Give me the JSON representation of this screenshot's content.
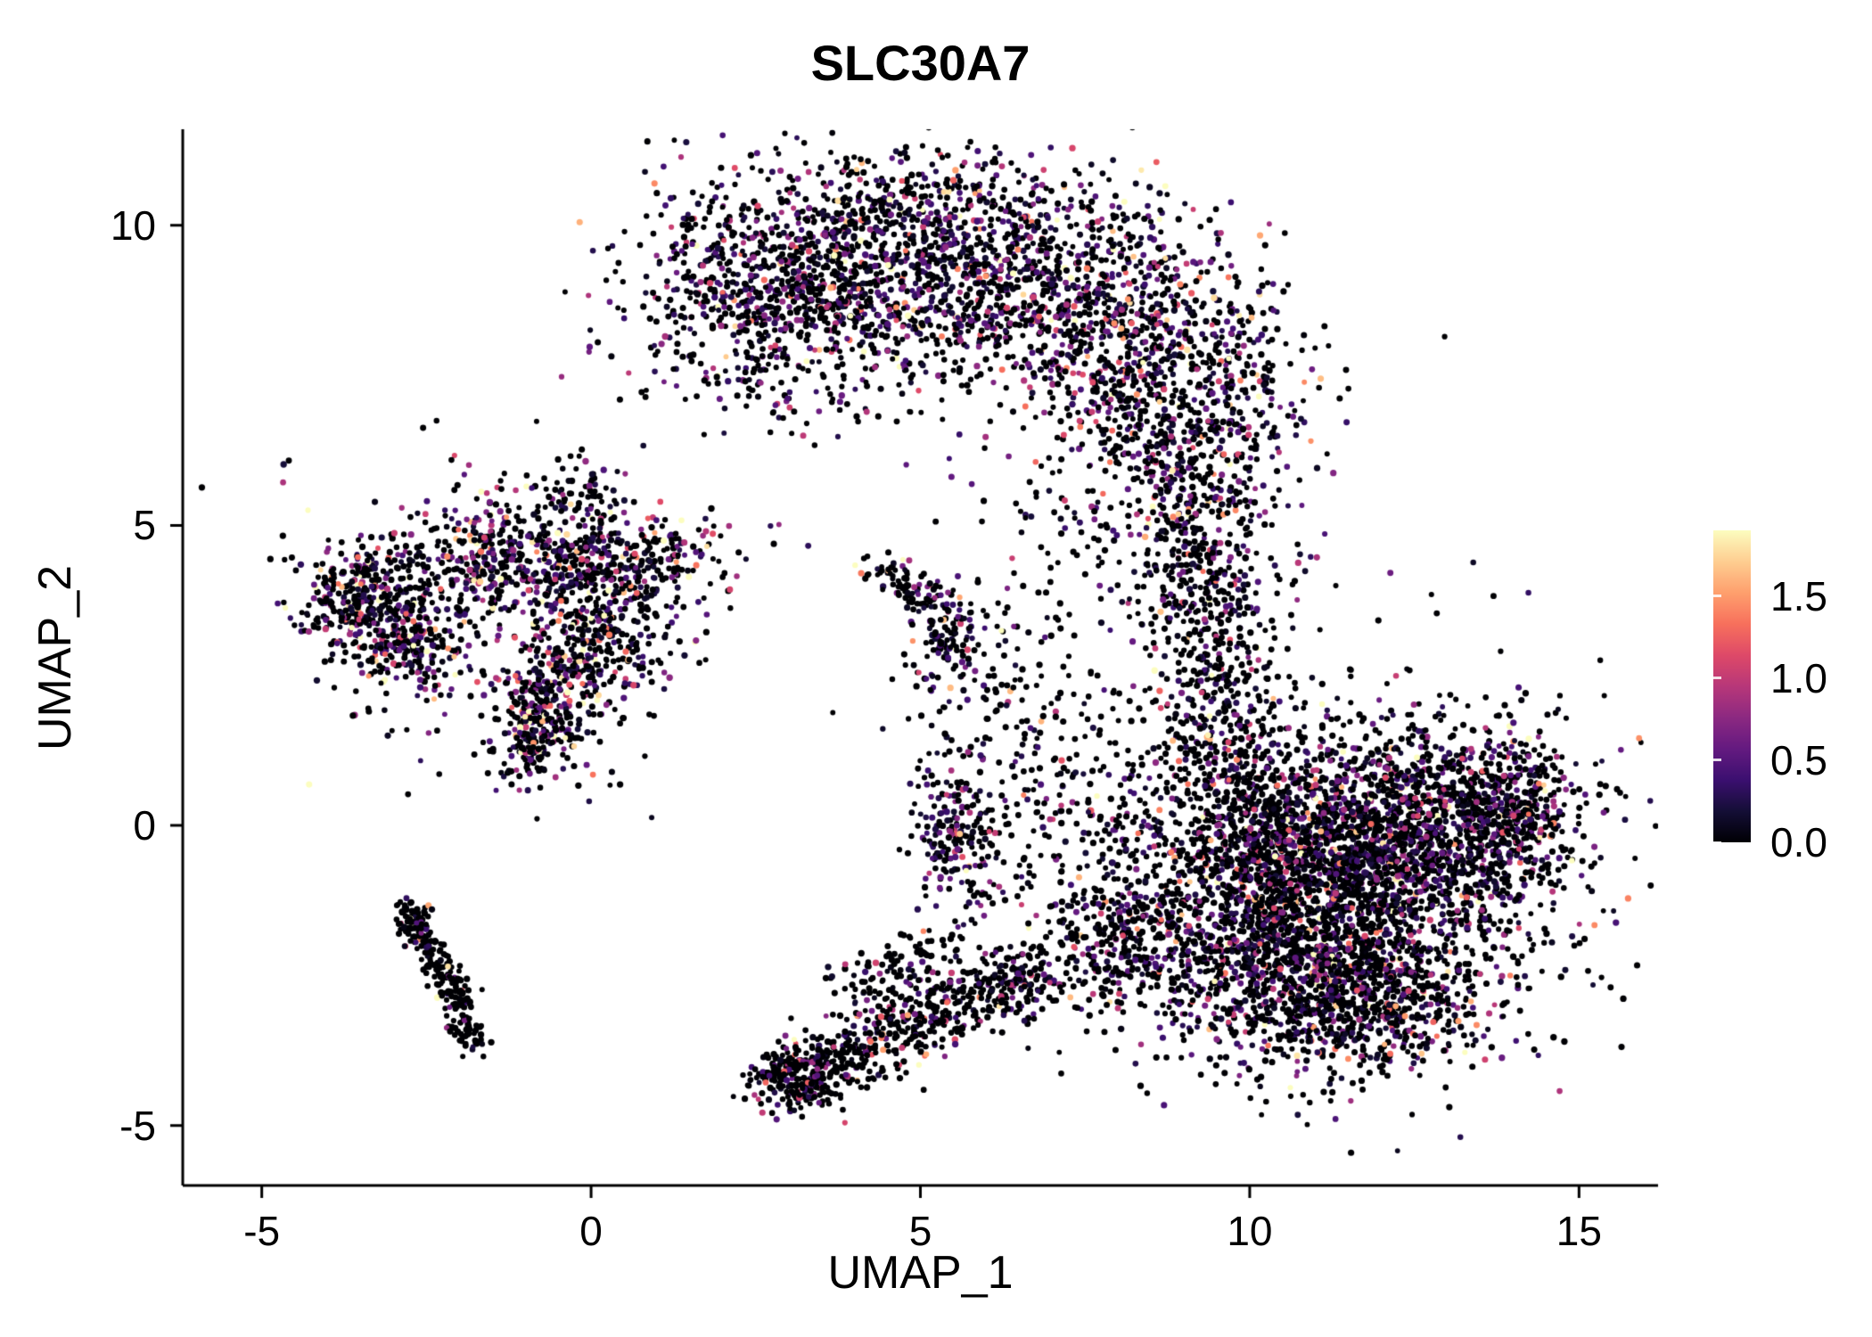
{
  "chart_data": {
    "type": "scatter",
    "title": "SLC30A7",
    "xlabel": "UMAP_1",
    "ylabel": "UMAP_2",
    "xlim": [
      -6.2,
      16.2
    ],
    "ylim": [
      -6.0,
      11.6
    ],
    "grid": false,
    "x_ticks": {
      "values": [
        -5,
        0,
        5,
        10,
        15
      ],
      "labels": [
        "-5",
        "0",
        "5",
        "10",
        "15"
      ]
    },
    "y_ticks": {
      "values": [
        -5,
        0,
        5,
        10
      ],
      "labels": [
        "-5",
        "0",
        "5",
        "10"
      ]
    },
    "colormap": {
      "name": "magma",
      "stops": [
        [
          0.0,
          "#000004"
        ],
        [
          0.1,
          "#140e36"
        ],
        [
          0.2,
          "#3b0f70"
        ],
        [
          0.3,
          "#641a80"
        ],
        [
          0.4,
          "#8c2981"
        ],
        [
          0.5,
          "#b73779"
        ],
        [
          0.6,
          "#de4968"
        ],
        [
          0.7,
          "#f7705c"
        ],
        [
          0.8,
          "#fe9f6d"
        ],
        [
          0.9,
          "#fece91"
        ],
        [
          1.0,
          "#fcfdbf"
        ]
      ]
    },
    "legend": {
      "position": "right",
      "range": [
        0,
        1.9
      ],
      "tick_values": [
        0.0,
        0.5,
        1.0,
        1.5
      ],
      "tick_labels": [
        "0.0",
        "0.5",
        "1.0",
        "1.5"
      ]
    },
    "point_radius_px": [
      2.9,
      3.7
    ],
    "clusters": [
      {
        "name": "top-crescent-core",
        "kind": "path",
        "points": [
          [
            1.4,
            8.8
          ],
          [
            2.6,
            9.3
          ],
          [
            3.6,
            9.7
          ],
          [
            4.8,
            9.9
          ],
          [
            6.1,
            9.7
          ],
          [
            7.3,
            9.2
          ],
          [
            8.4,
            8.6
          ],
          [
            9.2,
            7.8
          ],
          [
            9.5,
            6.9
          ],
          [
            9.2,
            6.1
          ]
        ],
        "jitter": 0.85,
        "n": 2400,
        "frac_expr": 0.5,
        "mean_expr": 0.5
      },
      {
        "name": "top-crescent-inner-fringe",
        "kind": "path",
        "points": [
          [
            2.8,
            8.6
          ],
          [
            4.0,
            8.9
          ],
          [
            5.2,
            8.9
          ],
          [
            6.4,
            8.5
          ],
          [
            7.3,
            7.9
          ],
          [
            8.0,
            7.2
          ],
          [
            8.4,
            6.4
          ]
        ],
        "jitter": 0.5,
        "n": 500,
        "frac_expr": 0.45,
        "mean_expr": 0.5
      },
      {
        "name": "top-sparse-below",
        "kind": "gauss",
        "center": [
          4.6,
          7.7
        ],
        "sx": 1.3,
        "sy": 0.85,
        "n": 150,
        "frac_expr": 0.4,
        "mean_expr": 0.5
      },
      {
        "name": "left-of-crescent",
        "kind": "gauss",
        "center": [
          3.0,
          8.3
        ],
        "sx": 0.8,
        "sy": 0.7,
        "n": 150,
        "frac_expr": 0.45,
        "mean_expr": 0.5
      },
      {
        "name": "connector-vertical",
        "kind": "path",
        "points": [
          [
            9.0,
            5.8
          ],
          [
            9.1,
            4.9
          ],
          [
            9.3,
            4.0
          ],
          [
            9.4,
            3.1
          ],
          [
            9.6,
            2.3
          ]
        ],
        "jitter": 0.45,
        "n": 380,
        "frac_expr": 0.4,
        "mean_expr": 0.5
      },
      {
        "name": "connector-sparse",
        "kind": "gauss",
        "center": [
          9.0,
          4.2
        ],
        "sx": 0.9,
        "sy": 1.2,
        "n": 160,
        "frac_expr": 0.35,
        "mean_expr": 0.5
      },
      {
        "name": "right-blob-core",
        "kind": "gauss",
        "center": [
          11.2,
          -0.9
        ],
        "sx": 1.5,
        "sy": 1.1,
        "n": 2300,
        "frac_expr": 0.42,
        "mean_expr": 0.5
      },
      {
        "name": "right-blob-upper",
        "kind": "gauss",
        "center": [
          12.6,
          0.2
        ],
        "sx": 1.1,
        "sy": 0.75,
        "n": 750,
        "frac_expr": 0.42,
        "mean_expr": 0.5
      },
      {
        "name": "right-blob-tip",
        "kind": "gauss",
        "center": [
          14.0,
          0.3
        ],
        "sx": 0.5,
        "sy": 0.6,
        "n": 280,
        "frac_expr": 0.42,
        "mean_expr": 0.5
      },
      {
        "name": "right-blob-lower",
        "kind": "gauss",
        "center": [
          10.6,
          -2.6
        ],
        "sx": 1.1,
        "sy": 0.75,
        "n": 700,
        "frac_expr": 0.4,
        "mean_expr": 0.5
      },
      {
        "name": "right-blob-bottom",
        "kind": "gauss",
        "center": [
          11.9,
          -2.9
        ],
        "sx": 0.9,
        "sy": 0.6,
        "n": 420,
        "frac_expr": 0.38,
        "mean_expr": 0.5
      },
      {
        "name": "right-blob-left-edge",
        "kind": "path",
        "points": [
          [
            9.2,
            2.0
          ],
          [
            9.7,
            1.2
          ],
          [
            10.1,
            0.3
          ],
          [
            10.2,
            -0.6
          ]
        ],
        "jitter": 0.5,
        "n": 350,
        "frac_expr": 0.4,
        "mean_expr": 0.5
      },
      {
        "name": "right-blob-halo",
        "kind": "gauss",
        "center": [
          11.5,
          -0.8
        ],
        "sx": 2.2,
        "sy": 1.8,
        "n": 500,
        "frac_expr": 0.35,
        "mean_expr": 0.5
      },
      {
        "name": "left-cluster-a",
        "kind": "gauss",
        "center": [
          -3.55,
          3.9
        ],
        "sx": 0.45,
        "sy": 0.45,
        "n": 240,
        "frac_expr": 0.5,
        "mean_expr": 0.6
      },
      {
        "name": "left-cluster-b",
        "kind": "gauss",
        "center": [
          -2.95,
          3.05
        ],
        "sx": 0.5,
        "sy": 0.45,
        "n": 260,
        "frac_expr": 0.5,
        "mean_expr": 0.6
      },
      {
        "name": "left-cluster-top",
        "kind": "gauss",
        "center": [
          -1.3,
          4.45
        ],
        "sx": 0.85,
        "sy": 0.5,
        "n": 380,
        "frac_expr": 0.5,
        "mean_expr": 0.6
      },
      {
        "name": "left-cluster-topright",
        "kind": "gauss",
        "center": [
          0.4,
          4.4
        ],
        "sx": 0.8,
        "sy": 0.45,
        "n": 300,
        "frac_expr": 0.5,
        "mean_expr": 0.6
      },
      {
        "name": "left-cluster-mid",
        "kind": "gauss",
        "center": [
          0.1,
          3.0
        ],
        "sx": 0.6,
        "sy": 0.5,
        "n": 240,
        "frac_expr": 0.5,
        "mean_expr": 0.6
      },
      {
        "name": "left-cluster-low",
        "kind": "gauss",
        "center": [
          -0.55,
          2.1
        ],
        "sx": 0.5,
        "sy": 0.55,
        "n": 220,
        "frac_expr": 0.5,
        "mean_expr": 0.6
      },
      {
        "name": "left-cluster-tail",
        "kind": "path",
        "points": [
          [
            -0.7,
            1.9
          ],
          [
            -0.85,
            1.3
          ],
          [
            -0.95,
            0.85
          ]
        ],
        "jitter": 0.25,
        "n": 130,
        "frac_expr": 0.5,
        "mean_expr": 0.6
      },
      {
        "name": "left-cluster-sparse",
        "kind": "gauss",
        "center": [
          -1.2,
          3.6
        ],
        "sx": 1.6,
        "sy": 1.3,
        "n": 280,
        "frac_expr": 0.45,
        "mean_expr": 0.6
      },
      {
        "name": "left-cluster-spur-top",
        "kind": "gauss",
        "center": [
          -0.15,
          5.6
        ],
        "sx": 0.3,
        "sy": 0.3,
        "n": 50,
        "frac_expr": 0.45,
        "mean_expr": 0.6
      },
      {
        "name": "thin-diagonal",
        "kind": "path",
        "points": [
          [
            -2.75,
            -1.45
          ],
          [
            -2.55,
            -1.9
          ],
          [
            -2.3,
            -2.35
          ],
          [
            -2.1,
            -2.8
          ],
          [
            -1.95,
            -3.25
          ],
          [
            -1.8,
            -3.7
          ]
        ],
        "jitter": 0.13,
        "n": 230,
        "frac_expr": 0.18,
        "mean_expr": 0.5
      },
      {
        "name": "thin-diagonal-hook",
        "kind": "path",
        "points": [
          [
            -2.85,
            -1.35
          ],
          [
            -2.6,
            -1.6
          ]
        ],
        "jitter": 0.1,
        "n": 40,
        "frac_expr": 0.18,
        "mean_expr": 0.5
      },
      {
        "name": "small-mid-cluster",
        "kind": "gauss",
        "center": [
          5.35,
          3.15
        ],
        "sx": 0.3,
        "sy": 0.5,
        "n": 140,
        "frac_expr": 0.45,
        "mean_expr": 0.55
      },
      {
        "name": "small-mid-arm",
        "kind": "path",
        "points": [
          [
            4.25,
            4.3
          ],
          [
            4.7,
            4.1
          ],
          [
            5.15,
            3.8
          ]
        ],
        "jitter": 0.15,
        "n": 70,
        "frac_expr": 0.4,
        "mean_expr": 0.5
      },
      {
        "name": "small-blob-mid-left",
        "kind": "gauss",
        "center": [
          5.55,
          -0.1
        ],
        "sx": 0.35,
        "sy": 0.6,
        "n": 200,
        "frac_expr": 0.45,
        "mean_expr": 0.55
      },
      {
        "name": "bottom-tail",
        "kind": "path",
        "points": [
          [
            2.8,
            -4.3
          ],
          [
            3.3,
            -4.15
          ],
          [
            3.9,
            -3.85
          ],
          [
            4.6,
            -3.5
          ],
          [
            5.3,
            -3.1
          ],
          [
            6.0,
            -2.8
          ],
          [
            6.7,
            -2.5
          ]
        ],
        "jitter": 0.3,
        "n": 600,
        "frac_expr": 0.3,
        "mean_expr": 0.5
      },
      {
        "name": "bottom-tail-tip-dense",
        "kind": "gauss",
        "center": [
          3.1,
          -4.15
        ],
        "sx": 0.3,
        "sy": 0.25,
        "n": 150,
        "frac_expr": 0.25,
        "mean_expr": 0.5
      },
      {
        "name": "bottom-tail-upper-arm",
        "kind": "path",
        "points": [
          [
            4.0,
            -2.8
          ],
          [
            4.8,
            -2.3
          ],
          [
            5.5,
            -2.0
          ]
        ],
        "jitter": 0.25,
        "n": 120,
        "frac_expr": 0.3,
        "mean_expr": 0.5
      },
      {
        "name": "bottom-fan",
        "kind": "path",
        "points": [
          [
            6.9,
            -2.3
          ],
          [
            7.6,
            -2.0
          ],
          [
            8.3,
            -1.8
          ],
          [
            9.0,
            -1.9
          ]
        ],
        "jitter": 0.5,
        "n": 300,
        "frac_expr": 0.35,
        "mean_expr": 0.5
      },
      {
        "name": "mid-sparse-field",
        "kind": "gauss",
        "center": [
          7.3,
          0.3
        ],
        "sx": 1.1,
        "sy": 1.3,
        "n": 260,
        "frac_expr": 0.3,
        "mean_expr": 0.5
      },
      {
        "name": "mid-sparse-upper",
        "kind": "gauss",
        "center": [
          7.8,
          5.6
        ],
        "sx": 1.0,
        "sy": 0.8,
        "n": 120,
        "frac_expr": 0.35,
        "mean_expr": 0.5
      },
      {
        "name": "scatter-misc",
        "kind": "gauss",
        "center": [
          6.3,
          2.6
        ],
        "sx": 0.8,
        "sy": 0.8,
        "n": 90,
        "frac_expr": 0.3,
        "mean_expr": 0.5
      }
    ]
  }
}
